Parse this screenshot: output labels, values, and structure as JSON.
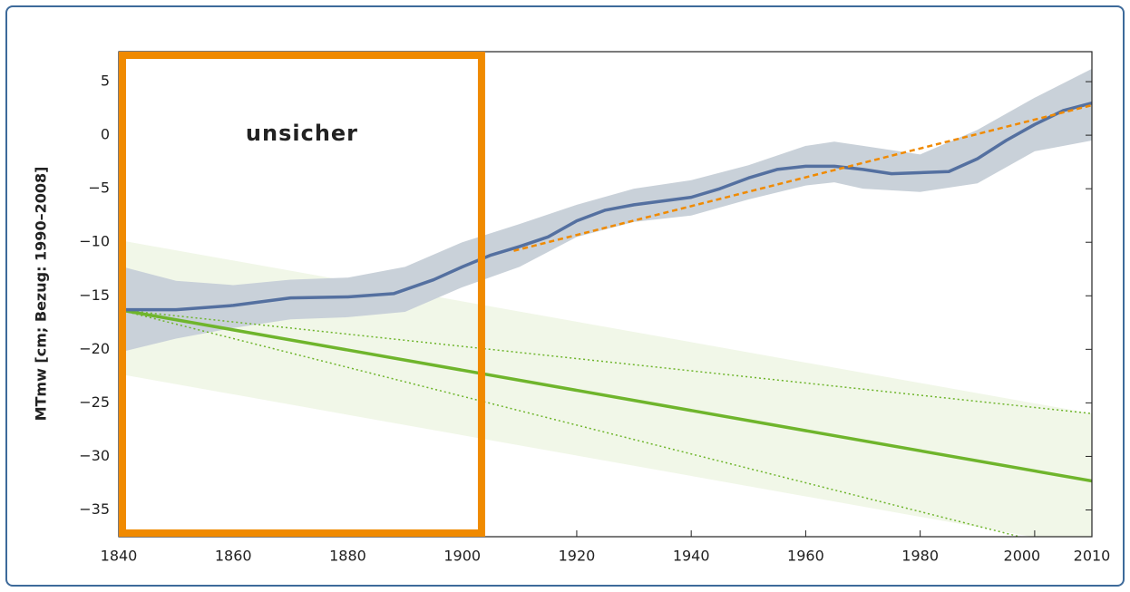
{
  "chart_data": {
    "type": "line",
    "y_label": "MTmw [cm; Bezug: 1990–2008]",
    "annotation": "unsicher",
    "uncertain_range": [
      1840,
      1904
    ],
    "uncertain_color": "#f08a00",
    "xlim": [
      1840,
      2010
    ],
    "xticks": [
      1840,
      1860,
      1880,
      1900,
      1920,
      1940,
      1960,
      1980,
      2000,
      2010
    ],
    "ylim": [
      -37.5,
      7.8
    ],
    "yticks": [
      5,
      0,
      {
        "value": -5,
        "label": "−5"
      },
      {
        "value": -10,
        "label": "−10"
      },
      {
        "value": -15,
        "label": "−15"
      },
      {
        "value": -20,
        "label": "−20"
      },
      {
        "value": -25,
        "label": "−25"
      },
      {
        "value": -30,
        "label": "−30"
      },
      {
        "value": -35,
        "label": "−35"
      }
    ],
    "bands": [
      {
        "color": "#f1f7e8",
        "x": [
          1840,
          2010
        ],
        "upper": [
          -9.8,
          -26
        ],
        "lower": [
          -22.3,
          -38.5
        ]
      },
      {
        "color": "#c9d1d9",
        "x": [
          1840,
          1850,
          1860,
          1870,
          1880,
          1890,
          1900,
          1910,
          1920,
          1930,
          1940,
          1950,
          1960,
          1965,
          1970,
          1980,
          1990,
          2000,
          2010
        ],
        "upper": [
          -12.2,
          -13.6,
          -14.0,
          -13.5,
          -13.3,
          -12.3,
          -10.0,
          -8.3,
          -6.5,
          -5.0,
          -4.2,
          -2.8,
          -1.0,
          -0.6,
          -1.0,
          -1.8,
          0.5,
          3.5,
          6.2
        ],
        "lower": [
          -20.3,
          -19.0,
          -18.0,
          -17.2,
          -17.0,
          -16.5,
          -14.2,
          -12.3,
          -9.5,
          -8.1,
          -7.5,
          -6.0,
          -4.7,
          -4.4,
          -5.0,
          -5.3,
          -4.5,
          -1.5,
          -0.5
        ]
      }
    ],
    "series": [
      {
        "color": "#6fb52c",
        "style": "dotted",
        "width": 1.5,
        "x": [
          1840,
          2010
        ],
        "values": [
          -16.3,
          -26.0
        ]
      },
      {
        "color": "#6fb52c",
        "style": "dotted",
        "width": 1.5,
        "x": [
          1840,
          2010
        ],
        "values": [
          -16.3,
          -39.2
        ]
      },
      {
        "color": "#6fb52c",
        "style": "solid",
        "width": 3.5,
        "x": [
          1840,
          2010
        ],
        "values": [
          -16.3,
          -32.3
        ]
      },
      {
        "color": "#5470a0",
        "style": "solid",
        "width": 3.5,
        "x": [
          1840,
          1850,
          1860,
          1870,
          1880,
          1888,
          1895,
          1900,
          1905,
          1910,
          1915,
          1920,
          1925,
          1930,
          1940,
          1945,
          1950,
          1955,
          1960,
          1965,
          1970,
          1975,
          1985,
          1990,
          1995,
          2000,
          2005,
          2010
        ],
        "values": [
          -16.3,
          -16.3,
          -15.9,
          -15.2,
          -15.1,
          -14.8,
          -13.5,
          -12.3,
          -11.2,
          -10.4,
          -9.5,
          -8.0,
          -7.0,
          -6.5,
          -5.8,
          -5.0,
          -4.0,
          -3.2,
          -2.9,
          -2.9,
          -3.2,
          -3.6,
          -3.4,
          -2.2,
          -0.5,
          1.0,
          2.3,
          3.0
        ]
      },
      {
        "color": "#f08a00",
        "style": "dashed",
        "width": 2.5,
        "x": [
          1909,
          2010
        ],
        "values": [
          -10.8,
          2.8
        ]
      }
    ]
  }
}
